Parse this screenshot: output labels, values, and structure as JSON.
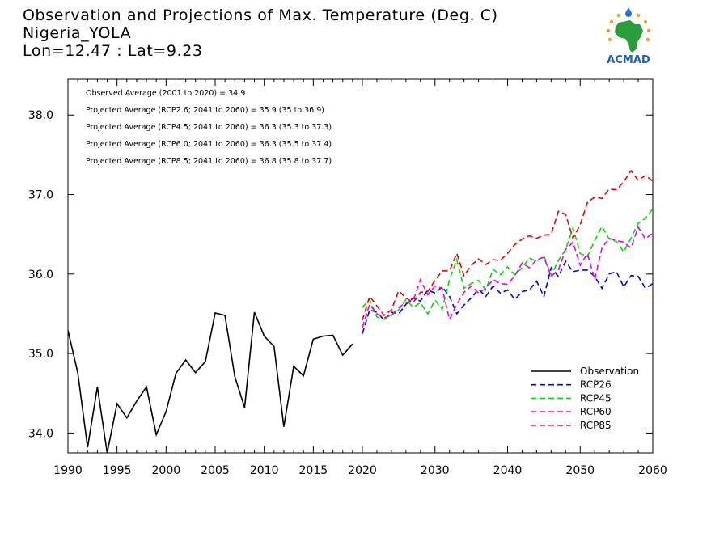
{
  "title": {
    "line1": "Observation and Projections of Max. Temperature (Deg. C)",
    "line2": "Nigeria_YOLA",
    "line3": "Lon=12.47 : Lat=9.23"
  },
  "logo": {
    "text": "ACMAD",
    "icon": "africa-map-logo-icon"
  },
  "averages": [
    "Observed Average (2001 to 2020) = 34.9",
    "Projected Average (RCP2.6; 2041 to 2060) = 35.9 (35 to 36.9)",
    "Projected Average (RCP4.5; 2041 to 2060) = 36.3 (35.3 to 37.3)",
    "Projected Average (RCP6.0; 2041 to 2060) = 36.3 (35.5 to 37.4)",
    "Projected Average (RCP8.5; 2041 to 2060) = 36.8 (35.8 to 37.7)"
  ],
  "chart_data": {
    "type": "line",
    "ylim": [
      33.75,
      38.45
    ],
    "yticks": [
      34.0,
      35.0,
      36.0,
      37.0,
      38.0
    ],
    "ytick_labels": [
      "34.0",
      "35.0",
      "36.0",
      "37.0",
      "38.0"
    ],
    "xtick_labels_hist": [
      "1990",
      "1995",
      "2000",
      "2005",
      "2010",
      "2015",
      "2020"
    ],
    "xtick_values_hist": [
      1990,
      1995,
      2000,
      2005,
      2010,
      2015,
      2020
    ],
    "xtick_labels_proj": [
      "2030",
      "2040",
      "2050",
      "2060"
    ],
    "xtick_values_proj": [
      2030,
      2040,
      2050,
      2060
    ],
    "series": [
      {
        "name": "Observation",
        "color": "#000000",
        "dashed": false,
        "period": "hist",
        "x": [
          1990,
          1991,
          1992,
          1993,
          1994,
          1995,
          1996,
          1997,
          1998,
          1999,
          2000,
          2001,
          2002,
          2003,
          2004,
          2005,
          2006,
          2007,
          2008,
          2009,
          2010,
          2011,
          2012,
          2013,
          2014,
          2015,
          2016,
          2017,
          2018,
          2019
        ],
        "y": [
          35.29,
          34.76,
          33.82,
          34.58,
          33.75,
          34.37,
          34.19,
          34.4,
          34.58,
          33.98,
          34.27,
          34.75,
          34.92,
          34.76,
          34.9,
          35.51,
          35.48,
          34.71,
          34.32,
          35.52,
          35.22,
          35.09,
          34.08,
          34.84,
          34.72,
          35.18,
          35.22,
          35.23,
          34.98,
          35.12
        ]
      },
      {
        "name": "RCP26",
        "color": "#0000ee",
        "dashed": true,
        "period": "proj",
        "x": [
          2020,
          2021,
          2022,
          2023,
          2024,
          2025,
          2026,
          2027,
          2028,
          2029,
          2030,
          2031,
          2032,
          2033,
          2034,
          2035,
          2036,
          2037,
          2038,
          2039,
          2040,
          2041,
          2042,
          2043,
          2044,
          2045,
          2046,
          2047,
          2048,
          2049,
          2050,
          2051,
          2052,
          2053,
          2054,
          2055,
          2056,
          2057,
          2058,
          2059,
          2060
        ],
        "y": [
          35.25,
          35.55,
          35.52,
          35.42,
          35.52,
          35.5,
          35.62,
          35.7,
          35.66,
          35.8,
          35.76,
          35.84,
          35.72,
          35.5,
          35.61,
          35.7,
          35.81,
          35.72,
          35.85,
          35.76,
          35.8,
          35.68,
          35.78,
          35.8,
          35.91,
          35.72,
          36.08,
          35.97,
          36.16,
          36.03,
          36.05,
          36.05,
          35.97,
          35.82,
          36.0,
          36.03,
          35.84,
          35.98,
          35.97,
          35.82,
          35.88
        ]
      },
      {
        "name": "RCP45",
        "color": "#00dd00",
        "dashed": true,
        "period": "proj",
        "x": [
          2020,
          2021,
          2022,
          2023,
          2024,
          2025,
          2026,
          2027,
          2028,
          2029,
          2030,
          2031,
          2032,
          2033,
          2034,
          2035,
          2036,
          2037,
          2038,
          2039,
          2040,
          2041,
          2042,
          2043,
          2044,
          2045,
          2046,
          2047,
          2048,
          2049,
          2050,
          2051,
          2052,
          2053,
          2054,
          2055,
          2056,
          2057,
          2058,
          2059,
          2060
        ],
        "y": [
          35.58,
          35.68,
          35.46,
          35.43,
          35.48,
          35.55,
          35.68,
          35.58,
          35.64,
          35.5,
          35.67,
          35.56,
          35.93,
          36.18,
          35.82,
          35.88,
          35.92,
          35.8,
          36.06,
          35.99,
          36.09,
          35.99,
          36.08,
          36.2,
          36.16,
          36.23,
          35.98,
          36.17,
          36.31,
          36.58,
          36.26,
          36.22,
          36.42,
          36.6,
          36.44,
          36.41,
          36.28,
          36.45,
          36.64,
          36.7,
          36.82
        ]
      },
      {
        "name": "RCP60",
        "color": "#ee00ee",
        "dashed": true,
        "period": "proj",
        "x": [
          2020,
          2021,
          2022,
          2023,
          2024,
          2025,
          2026,
          2027,
          2028,
          2029,
          2030,
          2031,
          2032,
          2033,
          2034,
          2035,
          2036,
          2037,
          2038,
          2039,
          2040,
          2041,
          2042,
          2043,
          2044,
          2045,
          2046,
          2047,
          2048,
          2049,
          2050,
          2051,
          2052,
          2053,
          2054,
          2055,
          2056,
          2057,
          2058,
          2059,
          2060
        ],
        "y": [
          35.33,
          35.62,
          35.5,
          35.45,
          35.48,
          35.58,
          35.64,
          35.67,
          35.93,
          35.74,
          35.85,
          35.82,
          35.43,
          35.62,
          35.77,
          35.85,
          35.76,
          35.82,
          35.93,
          35.88,
          35.87,
          35.98,
          36.14,
          36.08,
          36.18,
          36.21,
          35.97,
          36.05,
          36.31,
          36.4,
          36.11,
          36.26,
          35.93,
          36.33,
          36.45,
          36.42,
          36.4,
          36.33,
          36.59,
          36.44,
          36.52
        ]
      },
      {
        "name": "RCP85",
        "color": "#ee0000",
        "dashed": true,
        "period": "proj",
        "x": [
          2020,
          2021,
          2022,
          2023,
          2024,
          2025,
          2026,
          2027,
          2028,
          2029,
          2030,
          2031,
          2032,
          2033,
          2034,
          2035,
          2036,
          2037,
          2038,
          2039,
          2040,
          2041,
          2042,
          2043,
          2044,
          2045,
          2046,
          2047,
          2048,
          2049,
          2050,
          2051,
          2052,
          2053,
          2054,
          2055,
          2056,
          2057,
          2058,
          2059,
          2060
        ],
        "y": [
          35.42,
          35.72,
          35.6,
          35.48,
          35.55,
          35.79,
          35.7,
          35.64,
          35.77,
          35.78,
          35.92,
          36.04,
          36.04,
          36.26,
          35.98,
          36.11,
          36.19,
          36.12,
          36.18,
          36.17,
          36.26,
          36.37,
          36.44,
          36.48,
          36.45,
          36.49,
          36.5,
          36.79,
          36.75,
          36.45,
          36.62,
          36.9,
          36.97,
          36.95,
          37.07,
          37.06,
          37.16,
          37.3,
          37.18,
          37.24,
          37.17
        ]
      }
    ],
    "legend": {
      "position": "bottom-right",
      "entries": [
        "Observation",
        "RCP26",
        "RCP45",
        "RCP60",
        "RCP85"
      ]
    },
    "grid": false
  }
}
